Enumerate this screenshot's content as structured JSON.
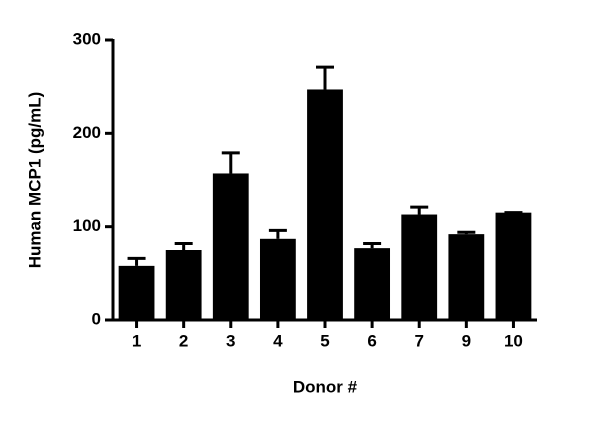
{
  "chart_data": {
    "type": "bar",
    "x_label": "Donor #",
    "y_label": "Human MCP1 (pg/mL)",
    "categories": [
      "1",
      "2",
      "3",
      "4",
      "5",
      "6",
      "7",
      "9",
      "10"
    ],
    "values": [
      58,
      75,
      157,
      87,
      247,
      77,
      113,
      92,
      115
    ],
    "errors": [
      8,
      7,
      22,
      9,
      24,
      5,
      8,
      2,
      0
    ],
    "color": "#000000",
    "ylim": [
      0,
      300
    ],
    "yticks": [
      0,
      100,
      200,
      300
    ]
  }
}
